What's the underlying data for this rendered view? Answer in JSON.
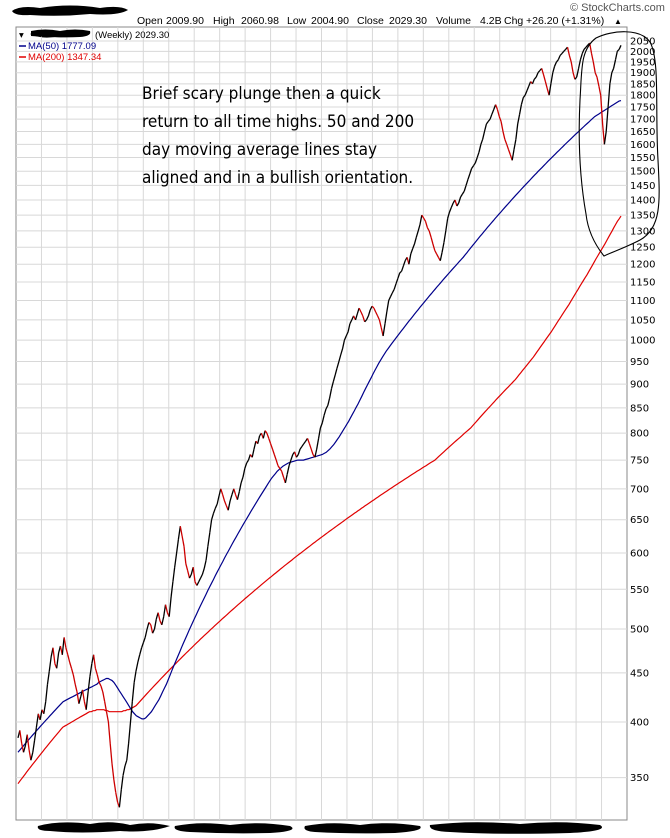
{
  "header": {
    "open_label": "Open",
    "open_value": "2009.90",
    "high_label": "High",
    "high_value": "2060.98",
    "low_label": "Low",
    "low_value": "2004.90",
    "close_label": "Close",
    "close_value": "2029.30",
    "volume_label": "Volume",
    "volume_value": "4.2B",
    "chg_label": "Chg",
    "chg_value": "+26.20 (+1.31%)",
    "chg_arrow": "▲",
    "brand": "© StockCharts.com"
  },
  "legend": {
    "series_label": "(Weekly) 2029.30",
    "ma50_label": "MA(50) 1777.09",
    "ma200_label": "MA(200) 1347.34"
  },
  "annotation": {
    "lines": [
      "Brief scary plunge then a quick",
      "return to all time highs. 50 and 200",
      "day moving average lines stay",
      "aligned and in a bullish orientation."
    ]
  },
  "colors": {
    "price": "#000000",
    "price_down": "#cc0000",
    "ma50": "#00008b",
    "ma200": "#e00000",
    "grid": "#d8d8d8",
    "redaction": "#000000"
  },
  "chart_data": {
    "type": "line",
    "y_scale": "log",
    "ylim": [
      320,
      2075
    ],
    "y_ticks": [
      350,
      400,
      450,
      500,
      550,
      600,
      650,
      700,
      750,
      800,
      850,
      900,
      950,
      1000,
      1050,
      1100,
      1150,
      1200,
      1250,
      1300,
      1350,
      1400,
      1450,
      1500,
      1550,
      1600,
      1650,
      1700,
      1750,
      1800,
      1850,
      1900,
      1950,
      2000,
      2050
    ],
    "grid": true,
    "legend_position": "top-left",
    "series": [
      {
        "name": "(Weekly) 2029.30",
        "values": [
          385,
          392,
          380,
          372,
          378,
          388,
          374,
          365,
          372,
          383,
          395,
          408,
          402,
          412,
          408,
          420,
          438,
          452,
          468,
          478,
          460,
          455,
          472,
          480,
          470,
          490,
          478,
          470,
          462,
          455,
          448,
          438,
          430,
          418,
          425,
          432,
          420,
          412,
          430,
          446,
          460,
          470,
          455,
          448,
          440,
          436,
          430,
          420,
          410,
          400,
          380,
          362,
          348,
          338,
          330,
          326,
          340,
          352,
          360,
          365,
          380,
          400,
          420,
          440,
          452,
          462,
          470,
          478,
          484,
          490,
          500,
          508,
          505,
          495,
          500,
          512,
          520,
          510,
          505,
          515,
          530,
          520,
          515,
          540,
          560,
          580,
          600,
          620,
          640,
          625,
          610,
          585,
          575,
          565,
          570,
          580,
          560,
          555,
          560,
          565,
          570,
          578,
          590,
          610,
          630,
          650,
          660,
          668,
          675,
          688,
          700,
          690,
          680,
          672,
          665,
          680,
          690,
          700,
          690,
          682,
          695,
          710,
          720,
          735,
          745,
          750,
          760,
          755,
          770,
          785,
          780,
          795,
          800,
          790,
          805,
          800,
          790,
          780,
          770,
          760,
          750,
          740,
          735,
          730,
          720,
          710,
          725,
          740,
          750,
          760,
          765,
          755,
          760,
          770,
          775,
          780,
          785,
          790,
          780,
          770,
          760,
          755,
          770,
          790,
          810,
          820,
          835,
          848,
          855,
          870,
          890,
          905,
          920,
          935,
          950,
          965,
          980,
          1000,
          1010,
          1020,
          1040,
          1050,
          1060,
          1050,
          1065,
          1080,
          1070,
          1060,
          1045,
          1050,
          1060,
          1075,
          1085,
          1080,
          1070,
          1060,
          1050,
          1030,
          1010,
          1040,
          1070,
          1100,
          1110,
          1120,
          1130,
          1145,
          1160,
          1175,
          1180,
          1195,
          1210,
          1220,
          1200,
          1230,
          1245,
          1260,
          1280,
          1300,
          1320,
          1350,
          1340,
          1330,
          1310,
          1300,
          1280,
          1260,
          1240,
          1230,
          1220,
          1210,
          1235,
          1265,
          1300,
          1340,
          1360,
          1375,
          1390,
          1400,
          1380,
          1390,
          1410,
          1420,
          1430,
          1450,
          1470,
          1490,
          1510,
          1520,
          1530,
          1550,
          1570,
          1600,
          1620,
          1650,
          1680,
          1690,
          1700,
          1720,
          1740,
          1760,
          1740,
          1710,
          1690,
          1650,
          1620,
          1600,
          1580,
          1560,
          1540,
          1580,
          1620,
          1680,
          1720,
          1760,
          1790,
          1800,
          1820,
          1840,
          1860,
          1850,
          1870,
          1880,
          1900,
          1910,
          1920,
          1890,
          1860,
          1830,
          1800,
          1850,
          1900,
          1930,
          1950,
          1960,
          1980,
          1990,
          2000,
          2010,
          2020,
          1980,
          1950,
          1900,
          1870,
          1880,
          1920,
          1960,
          1990,
          2010,
          2020,
          2030,
          2040,
          1990,
          1950,
          1900,
          1880,
          1840,
          1800,
          1680,
          1600,
          1650,
          1750,
          1850,
          1900,
          1920,
          1960,
          2000,
          2010,
          2029
        ]
      },
      {
        "name": "MA(50) 1777.09",
        "values": [
          372,
          374,
          376,
          378,
          380,
          382,
          384,
          386,
          388,
          390,
          392,
          394,
          396,
          398,
          400,
          402,
          404,
          406,
          408,
          410,
          412,
          414,
          416,
          418,
          420,
          421,
          422,
          423,
          424,
          425,
          426,
          427,
          428,
          429,
          430,
          431,
          432,
          433,
          434,
          435,
          436,
          437,
          438,
          440,
          441,
          442,
          443,
          444,
          444,
          443,
          442,
          440,
          437,
          434,
          431,
          428,
          425,
          422,
          419,
          416,
          413,
          410,
          408,
          406,
          405,
          404,
          403,
          403,
          404,
          406,
          408,
          410,
          413,
          416,
          419,
          422,
          426,
          430,
          434,
          438,
          443,
          448,
          453,
          458,
          463,
          468,
          473,
          478,
          483,
          488,
          493,
          498,
          503,
          508,
          513,
          518,
          523,
          528,
          533,
          538,
          543,
          548,
          553,
          558,
          563,
          568,
          573,
          578,
          583,
          588,
          593,
          598,
          603,
          608,
          613,
          618,
          623,
          628,
          633,
          638,
          643,
          648,
          653,
          658,
          663,
          668,
          673,
          678,
          683,
          688,
          693,
          698,
          703,
          708,
          713,
          718,
          722,
          726,
          730,
          733,
          736,
          739,
          741,
          743,
          745,
          746,
          747,
          748,
          749,
          750,
          750,
          750,
          750,
          751,
          752,
          753,
          754,
          755,
          756,
          757,
          758,
          759,
          760,
          762,
          764,
          767,
          770,
          774,
          778,
          783,
          788,
          793,
          799,
          805,
          811,
          817,
          823,
          830,
          837,
          844,
          851,
          858,
          866,
          874,
          882,
          890,
          898,
          906,
          914,
          922,
          930,
          938,
          946,
          953,
          960,
          967,
          974,
          980,
          986,
          992,
          998,
          1004,
          1010,
          1016,
          1022,
          1028,
          1034,
          1040,
          1046,
          1052,
          1058,
          1064,
          1070,
          1076,
          1082,
          1088,
          1094,
          1100,
          1106,
          1112,
          1118,
          1124,
          1130,
          1136,
          1142,
          1148,
          1154,
          1160,
          1166,
          1172,
          1178,
          1184,
          1190,
          1196,
          1202,
          1208,
          1214,
          1220,
          1227,
          1234,
          1241,
          1248,
          1255,
          1262,
          1269,
          1276,
          1283,
          1290,
          1297,
          1304,
          1311,
          1318,
          1325,
          1332,
          1339,
          1346,
          1353,
          1360,
          1367,
          1374,
          1381,
          1388,
          1395,
          1402,
          1409,
          1416,
          1423,
          1430,
          1437,
          1444,
          1451,
          1458,
          1465,
          1472,
          1479,
          1486,
          1493,
          1500,
          1507,
          1514,
          1521,
          1528,
          1535,
          1542,
          1549,
          1556,
          1563,
          1570,
          1577,
          1584,
          1591,
          1598,
          1605,
          1612,
          1619,
          1626,
          1633,
          1640,
          1647,
          1654,
          1661,
          1668,
          1675,
          1682,
          1689,
          1696,
          1703,
          1710,
          1715,
          1720,
          1725,
          1730,
          1735,
          1740,
          1745,
          1750,
          1755,
          1760,
          1765,
          1770,
          1775,
          1777
        ]
      },
      {
        "name": "MA(200) 1347.34",
        "values": [
          345,
          347,
          349,
          351,
          353,
          355,
          357,
          359,
          361,
          363,
          365,
          367,
          369,
          371,
          373,
          375,
          377,
          379,
          381,
          383,
          385,
          387,
          389,
          391,
          393,
          395,
          396,
          397,
          398,
          399,
          400,
          401,
          402,
          403,
          404,
          405,
          406,
          407,
          408,
          409,
          410,
          410,
          411,
          411,
          412,
          412,
          412,
          412,
          412,
          411,
          411,
          410,
          410,
          410,
          410,
          410,
          410,
          410,
          410,
          411,
          411,
          412,
          412,
          413,
          414,
          415,
          416,
          418,
          420,
          422,
          424,
          426,
          428,
          430,
          432,
          434,
          436,
          438,
          440,
          442,
          444,
          446,
          448,
          450,
          452,
          454,
          456,
          458,
          460,
          462,
          464,
          466,
          468,
          470,
          472,
          474,
          476,
          478,
          480,
          482,
          484,
          486,
          488,
          490,
          492,
          494,
          496,
          498,
          500,
          502,
          504,
          506,
          508,
          510,
          512,
          514,
          516,
          518,
          520,
          522,
          524,
          526,
          528,
          530,
          532,
          534,
          536,
          538,
          540,
          542,
          544,
          546,
          548,
          550,
          552,
          554,
          556,
          558,
          560,
          562,
          564,
          566,
          568,
          570,
          572,
          574,
          576,
          578,
          580,
          582,
          584,
          586,
          588,
          590,
          592,
          594,
          596,
          598,
          600,
          602,
          604,
          606,
          608,
          610,
          612,
          614,
          616,
          618,
          620,
          622,
          624,
          626,
          628,
          630,
          632,
          634,
          636,
          638,
          640,
          642,
          644,
          646,
          648,
          650,
          652,
          654,
          656,
          658,
          660,
          662,
          664,
          666,
          668,
          670,
          672,
          674,
          676,
          678,
          680,
          682,
          684,
          686,
          688,
          690,
          692,
          694,
          696,
          698,
          700,
          702,
          704,
          706,
          708,
          710,
          712,
          714,
          716,
          718,
          720,
          722,
          724,
          726,
          728,
          730,
          732,
          734,
          736,
          738,
          740,
          742,
          744,
          746,
          748,
          750,
          753,
          756,
          759,
          762,
          765,
          768,
          771,
          774,
          777,
          780,
          783,
          786,
          789,
          792,
          795,
          798,
          801,
          804,
          807,
          810,
          814,
          818,
          822,
          826,
          830,
          834,
          838,
          842,
          846,
          850,
          854,
          858,
          862,
          866,
          870,
          874,
          878,
          882,
          886,
          890,
          894,
          898,
          902,
          906,
          910,
          915,
          920,
          925,
          930,
          935,
          940,
          945,
          950,
          955,
          960,
          966,
          972,
          978,
          984,
          990,
          996,
          1002,
          1008,
          1014,
          1020,
          1027,
          1034,
          1041,
          1048,
          1055,
          1062,
          1069,
          1076,
          1083,
          1090,
          1098,
          1106,
          1114,
          1122,
          1130,
          1138,
          1146,
          1154,
          1162,
          1170,
          1179,
          1188,
          1197,
          1206,
          1215,
          1224,
          1233,
          1242,
          1251,
          1260,
          1270,
          1280,
          1290,
          1300,
          1310,
          1320,
          1330,
          1338,
          1347
        ]
      }
    ]
  }
}
